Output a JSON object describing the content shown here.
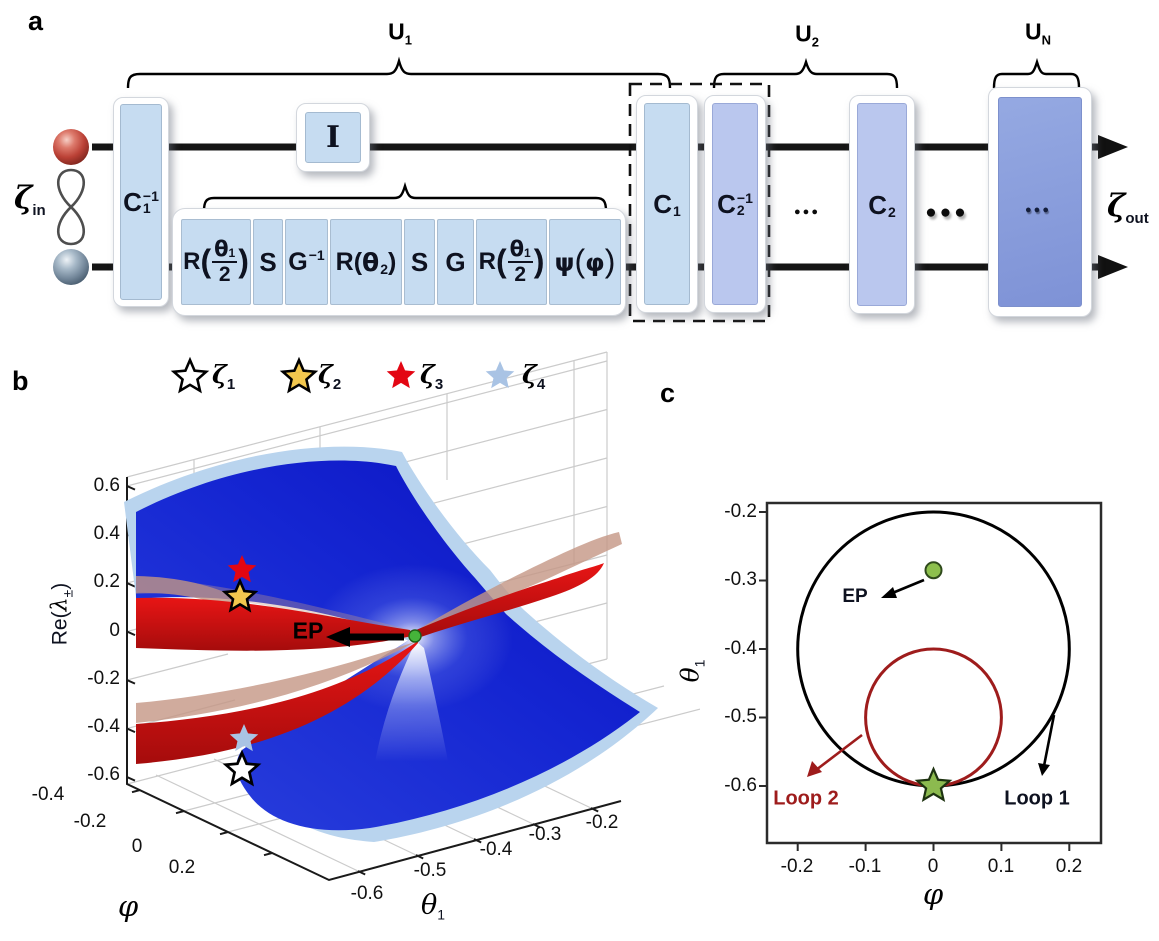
{
  "panels": {
    "a": "a",
    "b": "b",
    "c": "c"
  },
  "circuit": {
    "input": {
      "symbol": "ζ",
      "sub": "in"
    },
    "output": {
      "symbol": "ζ",
      "sub": "out"
    },
    "brace_u1": {
      "base": "U",
      "sub": "1"
    },
    "brace_u2": {
      "base": "U",
      "sub": "2"
    },
    "brace_un": {
      "base": "U",
      "sub": "N"
    },
    "gate_c1inv": {
      "base": "C",
      "sub": "1",
      "sup": "−1"
    },
    "gate_identity": "I",
    "gate_r1a": {
      "name": "R",
      "open": "(",
      "frac_num": "θ",
      "frac_num_sub": "1",
      "frac_den": "2",
      "close": ")"
    },
    "gate_s1": "S",
    "gate_ginv": {
      "base": "G",
      "sup": "−1"
    },
    "gate_r2": {
      "name": "R",
      "open": "(",
      "arg": "θ",
      "arg_sub": "2",
      "close": ")"
    },
    "gate_s2": "S",
    "gate_g": "G",
    "gate_r1b": {
      "name": "R",
      "open": "(",
      "frac_num": "θ",
      "frac_num_sub": "1",
      "frac_den": "2",
      "close": ")"
    },
    "gate_psi": {
      "name": "ψ",
      "open": "(",
      "arg": "φ",
      "close": ")"
    },
    "gate_c1": {
      "base": "C",
      "sub": "1"
    },
    "gate_c2inv": {
      "base": "C",
      "sub": "2",
      "sup": "−1"
    },
    "gate_c2": {
      "base": "C",
      "sub": "2"
    },
    "dots_mid": "●●●",
    "dots_large": "●●●",
    "dots_un": "●●●",
    "box_colors": {
      "light_blue": "#c6dcf1",
      "periwinkle": "#bac7ee",
      "deep_blue": "#8ca0dd"
    }
  },
  "legend": {
    "items": [
      {
        "label": "ζ",
        "sub": "1",
        "fill": "#ffffff",
        "stroke": "#000000"
      },
      {
        "label": "ζ",
        "sub": "2",
        "fill": "#f2c74e",
        "stroke": "#000000"
      },
      {
        "label": "ζ",
        "sub": "3",
        "fill": "#e30613",
        "stroke": "none"
      },
      {
        "label": "ζ",
        "sub": "4",
        "fill": "#a9c3e4",
        "stroke": "none"
      }
    ]
  },
  "panel_b": {
    "z_ticks": [
      "0.6",
      "0.4",
      "0.2",
      "0",
      "-0.2",
      "-0.4",
      "-0.6"
    ],
    "z_label": {
      "prefix": "Re(",
      "symbol": "λ",
      "sub": "±",
      "suffix": ")"
    },
    "phi_ticks": [
      "-0.4",
      "-0.2",
      "0",
      "0.2"
    ],
    "phi_label": "φ",
    "theta_ticks": [
      "-0.6",
      "-0.5",
      "-0.4",
      "-0.3",
      "-0.2"
    ],
    "theta_label": {
      "base": "θ",
      "sub": "1"
    },
    "ep_label": "EP"
  },
  "panel_c": {
    "x_ticks": [
      "-0.2",
      "-0.1",
      "0",
      "0.1",
      "0.2"
    ],
    "x_label": "φ",
    "y_ticks": [
      "-0.2",
      "-0.3",
      "-0.4",
      "-0.5",
      "-0.6"
    ],
    "y_label": {
      "base": "θ",
      "sub": "1"
    },
    "ep_label": "EP",
    "loop1_label": "Loop 1",
    "loop2_label": "Loop 2"
  },
  "chart_data": [
    {
      "type": "surface_3d",
      "panel": "b",
      "xlabel": "φ",
      "ylabel": "θ1",
      "zlabel": "Re(λ±)",
      "x_ticks": [
        -0.4,
        -0.2,
        0,
        0.2
      ],
      "y_ticks": [
        -0.6,
        -0.5,
        -0.4,
        -0.3,
        -0.2
      ],
      "z_ticks": [
        0.6,
        0.4,
        0.2,
        0,
        -0.2,
        -0.4,
        -0.6
      ],
      "xlim": [
        -0.45,
        0.45
      ],
      "ylim": [
        -0.65,
        -0.15
      ],
      "zlim": [
        -0.65,
        0.65
      ],
      "grid": true,
      "surfaces": [
        {
          "name": "Re(λ+) sheet",
          "color": "#1021cc"
        },
        {
          "name": "Re(λ−) sheet",
          "color": "#1021cc"
        },
        {
          "name": "red sheets",
          "color": "#cc1414"
        },
        {
          "name": "translucent tan sheets",
          "color": "#c8a191"
        },
        {
          "name": "light blue back sheets",
          "color": "#b9d4ee"
        }
      ],
      "markers": [
        {
          "name": "ζ1",
          "shape": "star",
          "fill": "#ffffff",
          "phi": 0,
          "theta1": -0.6,
          "z": -0.57
        },
        {
          "name": "ζ2",
          "shape": "star",
          "fill": "#f2c74e",
          "phi": 0,
          "theta1": -0.6,
          "z": 0.17
        },
        {
          "name": "ζ3",
          "shape": "star",
          "fill": "#e30613",
          "phi": 0,
          "theta1": -0.6,
          "z": 0.27
        },
        {
          "name": "ζ4",
          "shape": "star",
          "fill": "#a9c3e4",
          "phi": 0,
          "theta1": -0.6,
          "z": -0.45
        },
        {
          "name": "EP",
          "shape": "dot",
          "fill": "#52b43c",
          "phi": 0,
          "theta1": -0.29,
          "z": 0
        }
      ],
      "annotations": [
        {
          "text": "EP",
          "arrow": true
        }
      ]
    },
    {
      "type": "line",
      "panel": "c",
      "xlabel": "φ",
      "ylabel": "θ1",
      "xlim": [
        -0.25,
        0.25
      ],
      "ylim": [
        -0.69,
        -0.18
      ],
      "x_ticks": [
        -0.2,
        -0.1,
        0,
        0.1,
        0.2
      ],
      "y_ticks": [
        -0.2,
        -0.3,
        -0.4,
        -0.5,
        -0.6
      ],
      "grid": false,
      "loops": [
        {
          "name": "Loop 1",
          "color": "#000000",
          "center": [
            0,
            -0.4
          ],
          "radius": 0.2
        },
        {
          "name": "Loop 2",
          "color": "#9e1c1c",
          "center": [
            0,
            -0.5
          ],
          "radius": 0.1
        }
      ],
      "markers": [
        {
          "name": "EP",
          "shape": "dot",
          "fill": "#8dc04d",
          "x": 0,
          "y": -0.285
        },
        {
          "name": "loop start",
          "shape": "star",
          "fill": "#8cba4f",
          "x": 0,
          "y": -0.6
        }
      ],
      "annotations": [
        {
          "text": "EP",
          "color": "#000000"
        },
        {
          "text": "Loop 1",
          "color": "#000000"
        },
        {
          "text": "Loop 2",
          "color": "#9e1c1c"
        }
      ]
    }
  ]
}
